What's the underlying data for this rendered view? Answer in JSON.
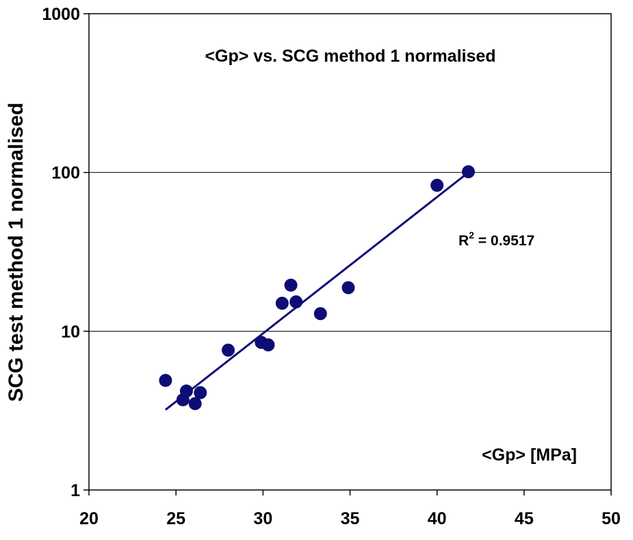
{
  "chart_data": {
    "type": "scatter",
    "title": "<Gp> vs. SCG method 1 normalised",
    "xlabel": "<Gp> [MPa]",
    "ylabel": "SCG test method 1 normalised",
    "xlim": [
      20,
      50
    ],
    "ylim": [
      1,
      1000
    ],
    "yscale": "log",
    "x_ticks": [
      "20",
      "25",
      "30",
      "35",
      "40",
      "45",
      "50"
    ],
    "y_ticks": [
      "1",
      "10",
      "100",
      "1000"
    ],
    "grid": "horizontal",
    "legend": "none",
    "colors": {
      "marker": "#0d0d75",
      "trendline": "#0d0d75"
    },
    "series": [
      {
        "x": [
          24.4,
          25.4,
          25.6,
          26.1,
          26.4,
          28.0,
          29.9,
          30.3,
          31.1,
          31.6,
          31.9,
          33.3,
          34.9,
          40.0,
          41.8
        ],
        "y": [
          4.9,
          3.7,
          4.2,
          3.5,
          4.1,
          7.6,
          8.5,
          8.2,
          15.0,
          19.5,
          15.3,
          12.9,
          18.8,
          83,
          101
        ]
      }
    ],
    "trendline": {
      "type": "exponential",
      "x_range": [
        24.4,
        41.8
      ],
      "y_range": [
        3.2,
        100
      ],
      "label": "R",
      "sup": "2",
      "r2": " = 0.9517"
    }
  }
}
